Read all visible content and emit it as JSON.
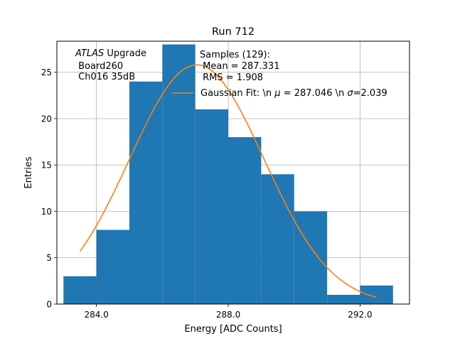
{
  "chart_data": {
    "type": "histogram",
    "title": "Run 712",
    "xlabel": "Energy [ADC Counts]",
    "ylabel": "Entries",
    "xlim": [
      282.8,
      293.5
    ],
    "ylim": [
      0,
      28.35
    ],
    "grid": true,
    "x_ticks": [
      {
        "value": 284,
        "label": "284.0"
      },
      {
        "value": 288,
        "label": "288.0"
      },
      {
        "value": 292,
        "label": "292.0"
      }
    ],
    "y_ticks": [
      {
        "value": 0,
        "label": "0"
      },
      {
        "value": 5,
        "label": "5"
      },
      {
        "value": 10,
        "label": "10"
      },
      {
        "value": 15,
        "label": "15"
      },
      {
        "value": 20,
        "label": "20"
      },
      {
        "value": 25,
        "label": "25"
      }
    ],
    "bins": [
      {
        "x0": 283.0,
        "x1": 284.0,
        "count": 3
      },
      {
        "x0": 284.0,
        "x1": 285.0,
        "count": 8
      },
      {
        "x0": 285.0,
        "x1": 286.0,
        "count": 24
      },
      {
        "x0": 286.0,
        "x1": 287.0,
        "count": 28
      },
      {
        "x0": 287.0,
        "x1": 288.0,
        "count": 21
      },
      {
        "x0": 288.0,
        "x1": 289.0,
        "count": 18
      },
      {
        "x0": 289.0,
        "x1": 290.0,
        "count": 14
      },
      {
        "x0": 290.0,
        "x1": 291.0,
        "count": 10
      },
      {
        "x0": 291.0,
        "x1": 292.0,
        "count": 1
      },
      {
        "x0": 292.0,
        "x1": 293.0,
        "count": 2
      }
    ],
    "fit": {
      "name": "Gaussian Fit",
      "mu": 287.046,
      "sigma": 2.039,
      "amplitude": 25.8,
      "x_range": [
        283.5,
        292.5
      ]
    },
    "colors": {
      "bar": "#1f77b4",
      "fit": "#ff7f0e",
      "grid": "#b0b0b0"
    },
    "annotation": {
      "italic": "ATLAS",
      "rest": " Upgrade",
      "line2": " Board260",
      "line3": " Ch016 35dB"
    },
    "legend": {
      "title_line1": "Samples (129):",
      "title_line2": " Mean = 287.331",
      "title_line3": " RMS = 1.908",
      "fit_label_prefix": "Gaussian Fit: \\n ",
      "fit_label_mu": "μ",
      "fit_label_mid": " = 287.046 \\n ",
      "fit_label_sigma": "σ",
      "fit_label_suffix": "=2.039",
      "placement": "top-right"
    }
  }
}
